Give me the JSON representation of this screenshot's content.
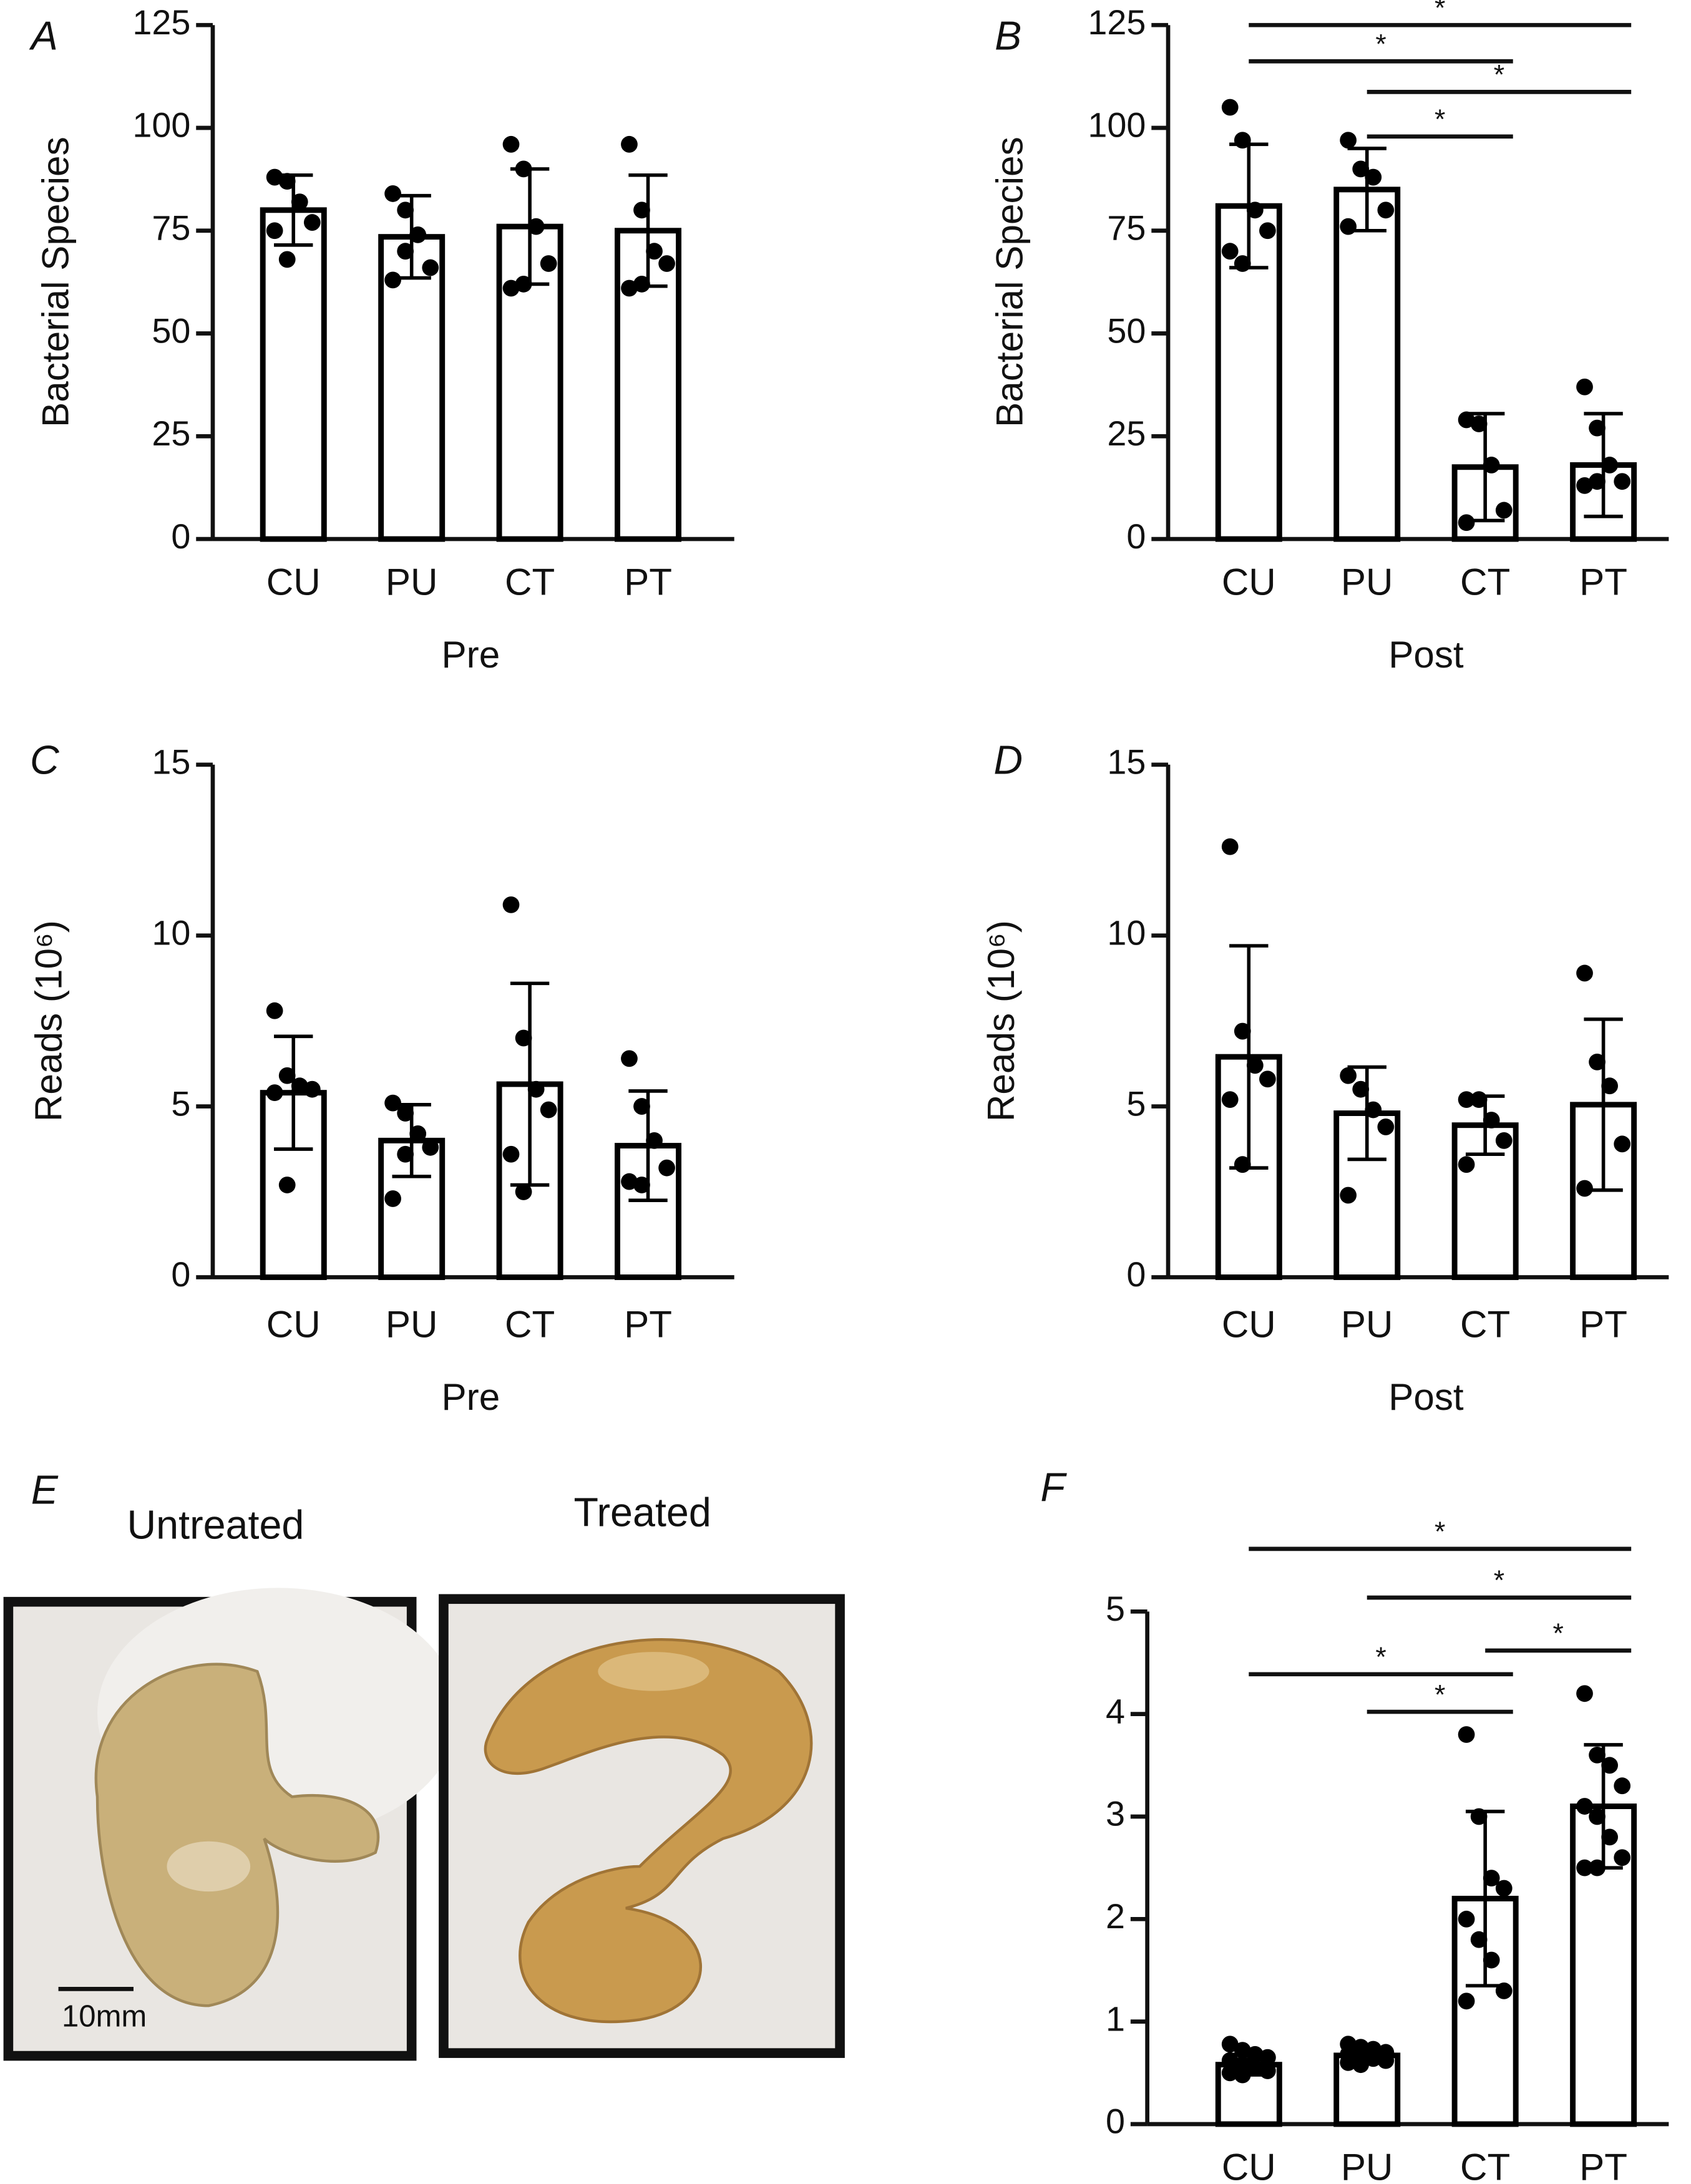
{
  "chart_data": [
    {
      "type": "bar",
      "panel_label": "A",
      "x_label": "Pre",
      "y_label": "Bacterial Species",
      "categories": [
        "CU",
        "PU",
        "CT",
        "PT"
      ],
      "values": [
        80,
        73.5,
        76,
        75
      ],
      "errors": [
        8.5,
        10,
        14,
        13.5
      ],
      "points": [
        [
          88,
          87,
          82,
          77,
          75,
          68
        ],
        [
          84,
          80,
          74,
          66,
          63,
          70
        ],
        [
          96,
          90,
          76,
          67,
          61,
          62
        ],
        [
          96,
          80,
          70,
          67,
          61,
          62
        ]
      ],
      "color": "#000000",
      "ylim": [
        0,
        125
      ],
      "yticks": [
        0,
        25,
        50,
        75,
        100,
        125
      ],
      "significance": []
    },
    {
      "type": "bar",
      "panel_label": "B",
      "x_label": "Post",
      "y_label": "Bacterial Species",
      "categories": [
        "CU",
        "PU",
        "CT",
        "PT"
      ],
      "values": [
        81,
        85,
        17.5,
        18
      ],
      "errors": [
        15,
        10,
        13,
        12.5
      ],
      "points": [
        [
          105,
          97,
          80,
          75,
          70,
          67
        ],
        [
          97,
          90,
          88,
          80,
          76
        ],
        [
          29,
          28,
          18,
          7,
          4
        ],
        [
          37,
          27,
          18,
          14,
          13,
          14
        ]
      ],
      "color": "#000000",
      "ylim": [
        0,
        125
      ],
      "yticks": [
        0,
        25,
        50,
        75,
        100,
        125
      ],
      "significance": [
        {
          "pair": [
            0,
            3
          ],
          "label": "*"
        },
        {
          "pair": [
            0,
            2
          ],
          "label": "*"
        },
        {
          "pair": [
            1,
            3
          ],
          "label": "*"
        },
        {
          "pair": [
            1,
            2
          ],
          "label": "*"
        }
      ]
    },
    {
      "type": "bar",
      "panel_label": "C",
      "x_label": "Pre",
      "y_label": "Reads (10⁶)",
      "categories": [
        "CU",
        "PU",
        "CT",
        "PT"
      ],
      "values": [
        5.4,
        4.0,
        5.65,
        3.85
      ],
      "errors": [
        1.65,
        1.05,
        2.95,
        1.6
      ],
      "points": [
        [
          7.8,
          5.9,
          5.6,
          5.5,
          5.4,
          2.7
        ],
        [
          5.1,
          4.8,
          4.2,
          3.8,
          2.3,
          3.6
        ],
        [
          10.9,
          7.0,
          5.5,
          4.9,
          3.6,
          2.5
        ],
        [
          6.4,
          5.0,
          4.0,
          3.2,
          2.8,
          2.7
        ]
      ],
      "color": "#000000",
      "ylim": [
        0,
        15
      ],
      "yticks": [
        0,
        5,
        10,
        15
      ],
      "significance": []
    },
    {
      "type": "bar",
      "panel_label": "D",
      "x_label": "Post",
      "y_label": "Reads (10⁶)",
      "categories": [
        "CU",
        "PU",
        "CT",
        "PT"
      ],
      "values": [
        6.45,
        4.8,
        4.45,
        5.05
      ],
      "errors": [
        3.25,
        1.35,
        0.85,
        2.5
      ],
      "points": [
        [
          12.6,
          7.2,
          6.2,
          5.8,
          5.2,
          3.3
        ],
        [
          5.9,
          5.5,
          4.9,
          4.4,
          2.4
        ],
        [
          5.2,
          5.2,
          4.6,
          4.0,
          3.3
        ],
        [
          8.9,
          6.3,
          5.6,
          3.9,
          2.6
        ]
      ],
      "color": "#000000",
      "ylim": [
        0,
        15
      ],
      "yticks": [
        0,
        5,
        10,
        15
      ],
      "significance": []
    },
    {
      "type": "bar",
      "panel_label": "F",
      "categories": [
        "CU",
        "PU",
        "CT",
        "PT"
      ],
      "values": [
        0.58,
        0.67,
        2.2,
        3.1
      ],
      "errors": [
        0.1,
        0.07,
        0.85,
        0.6
      ],
      "points": [
        [
          0.78,
          0.72,
          0.68,
          0.65,
          0.62,
          0.58,
          0.55,
          0.52,
          0.5,
          0.48
        ],
        [
          0.78,
          0.75,
          0.73,
          0.7,
          0.68,
          0.66,
          0.64,
          0.62,
          0.6,
          0.58
        ],
        [
          3.8,
          3.0,
          2.4,
          2.3,
          2.0,
          1.8,
          1.6,
          1.3,
          1.2
        ],
        [
          4.2,
          3.6,
          3.5,
          3.3,
          3.1,
          3.0,
          2.8,
          2.6,
          2.5,
          2.5
        ]
      ],
      "color": "#000000",
      "ylim": [
        0,
        5
      ],
      "yticks": [
        0,
        1,
        2,
        3,
        4,
        5
      ],
      "significance": [
        {
          "pair": [
            0,
            3
          ],
          "label": "*"
        },
        {
          "pair": [
            1,
            3
          ],
          "label": "*"
        },
        {
          "pair": [
            2,
            3
          ],
          "label": "*"
        },
        {
          "pair": [
            0,
            2
          ],
          "label": "*"
        },
        {
          "pair": [
            1,
            2
          ],
          "label": "*"
        }
      ]
    }
  ],
  "photo_panel": {
    "panel_label": "E",
    "captions": [
      "Untreated",
      "Treated"
    ],
    "scale_bar": "10mm"
  }
}
